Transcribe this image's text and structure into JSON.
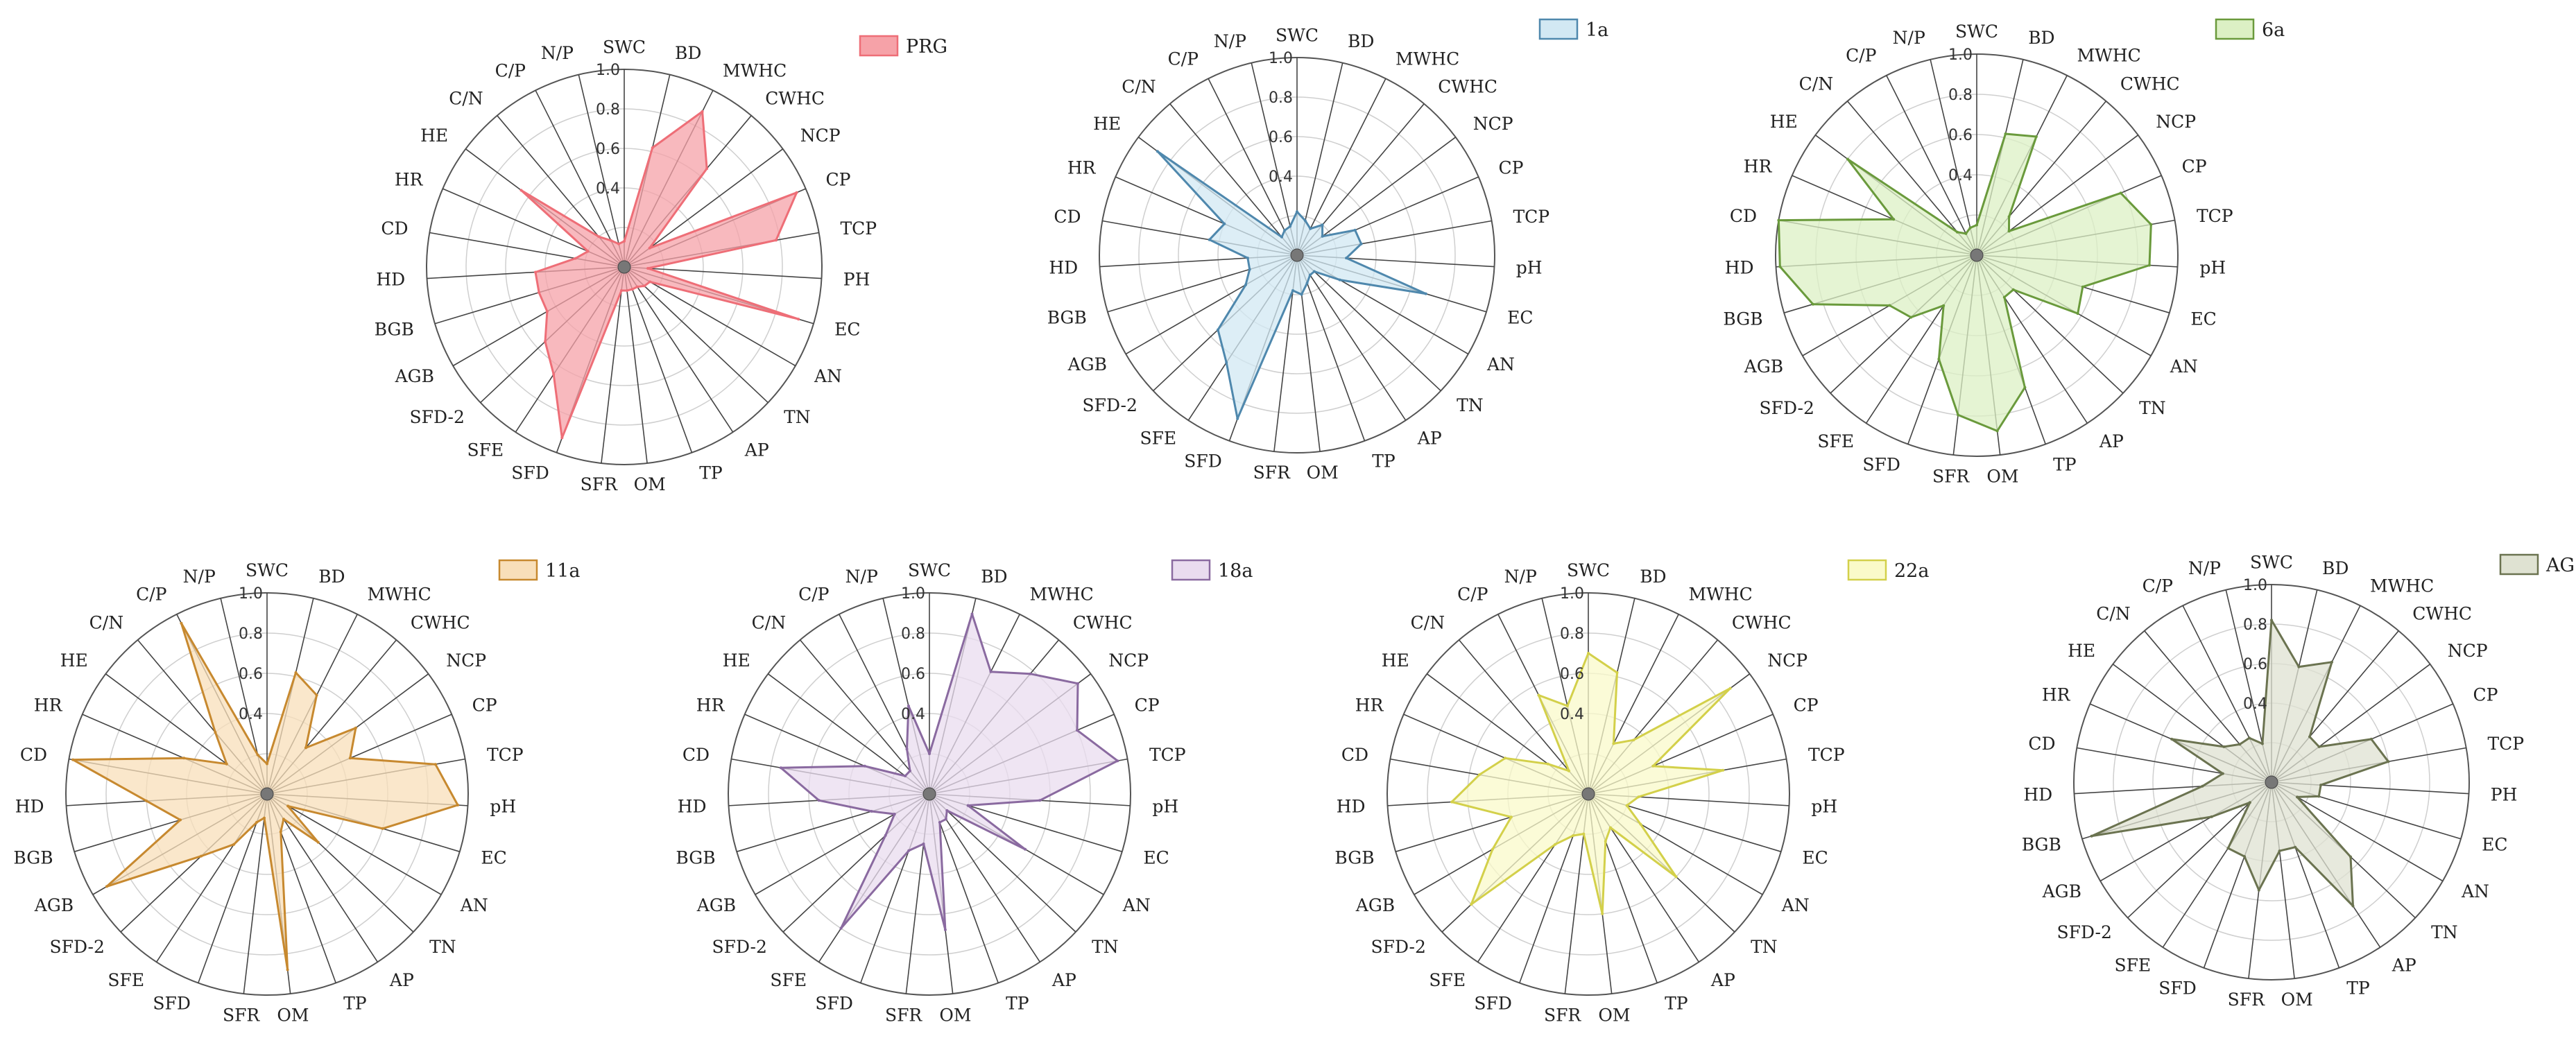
{
  "chart_data": [
    {
      "type": "radar",
      "title": "",
      "series_name": "PRG",
      "color": "#ee6e77",
      "fill": "#f6a2a8",
      "axes": [
        "SWC",
        "BD",
        "MWHC",
        "CWHC",
        "NCP",
        "CP",
        "TCP",
        "PH",
        "EC",
        "AN",
        "TN",
        "AP",
        "TP",
        "OM",
        "SFR",
        "SFD",
        "SFE",
        "SFD-2",
        "AGB",
        "BGB",
        "HD",
        "CD",
        "HR",
        "HE",
        "C/N",
        "C/P",
        "N/P"
      ],
      "ticks": [
        "1.0",
        "0.8",
        "0.6",
        "0.4"
      ],
      "range": [
        0,
        1
      ],
      "values": [
        0.13,
        0.62,
        0.88,
        0.65,
        0.16,
        0.95,
        0.78,
        0.12,
        0.92,
        0.15,
        0.14,
        0.12,
        0.12,
        0.12,
        0.12,
        0.92,
        0.65,
        0.55,
        0.45,
        0.45,
        0.45,
        0.25,
        0.2,
        0.65,
        0.2,
        0.15,
        0.12
      ]
    },
    {
      "type": "radar",
      "title": "",
      "series_name": "1a",
      "color": "#4f88ad",
      "fill": "#d2e8f3",
      "axes": [
        "SWC",
        "BD",
        "MWHC",
        "CWHC",
        "NCP",
        "CP",
        "TCP",
        "pH",
        "EC",
        "AN",
        "TN",
        "AP",
        "TP",
        "OM",
        "SFR",
        "SFD",
        "SFE",
        "SFD-2",
        "AGB",
        "BGB",
        "HD",
        "CD",
        "HR",
        "HE",
        "C/N",
        "C/P",
        "N/P"
      ],
      "ticks": [
        "1.0",
        "0.8",
        "0.6",
        "0.4"
      ],
      "range": [
        0,
        1
      ],
      "values": [
        0.22,
        0.18,
        0.15,
        0.2,
        0.16,
        0.32,
        0.33,
        0.25,
        0.68,
        0.25,
        0.12,
        0.12,
        0.15,
        0.2,
        0.18,
        0.88,
        0.65,
        0.55,
        0.3,
        0.25,
        0.25,
        0.45,
        0.4,
        0.88,
        0.12,
        0.14,
        0.15
      ]
    },
    {
      "type": "radar",
      "title": "",
      "series_name": "6a",
      "color": "#6a9a3c",
      "fill": "#dcf0c4",
      "axes": [
        "SWC",
        "BD",
        "MWHC",
        "CWHC",
        "NCP",
        "CP",
        "TCP",
        "pH",
        "EC",
        "AN",
        "TN",
        "AP",
        "TP",
        "OM",
        "SFR",
        "SFD",
        "SFE",
        "SFD-2",
        "AGB",
        "BGB",
        "HD",
        "CD",
        "HR",
        "HE",
        "C/N",
        "C/P",
        "N/P"
      ],
      "ticks": [
        "1.0",
        "0.8",
        "0.6",
        "0.4"
      ],
      "range": [
        0,
        1
      ],
      "values": [
        0.15,
        0.62,
        0.66,
        0.25,
        0.2,
        0.78,
        0.88,
        0.86,
        0.55,
        0.58,
        0.25,
        0.25,
        0.7,
        0.88,
        0.8,
        0.55,
        0.3,
        0.45,
        0.5,
        0.85,
        0.98,
        1.0,
        0.45,
        0.8,
        0.15,
        0.12,
        0.14
      ]
    },
    {
      "type": "radar",
      "title": "",
      "series_name": "11a",
      "color": "#c7892f",
      "fill": "#f8dfb9",
      "axes": [
        "SWC",
        "BD",
        "MWHC",
        "CWHC",
        "NCP",
        "CP",
        "TCP",
        "pH",
        "EC",
        "AN",
        "TN",
        "AP",
        "TP",
        "OM",
        "SFR",
        "SFD",
        "SFE",
        "SFD-2",
        "AGB",
        "BGB",
        "HD",
        "CD",
        "HR",
        "HE",
        "C/N",
        "C/P",
        "N/P"
      ],
      "ticks": [
        "1.0",
        "0.8",
        "0.6",
        "0.4"
      ],
      "range": [
        0,
        1
      ],
      "values": [
        0.15,
        0.62,
        0.55,
        0.3,
        0.55,
        0.45,
        0.85,
        0.95,
        0.6,
        0.12,
        0.35,
        0.15,
        0.2,
        0.88,
        0.12,
        0.15,
        0.3,
        0.45,
        0.92,
        0.45,
        0.6,
        0.98,
        0.45,
        0.25,
        0.4,
        0.95,
        0.2
      ]
    },
    {
      "type": "radar",
      "title": "",
      "series_name": "18a",
      "color": "#8a6aa0",
      "fill": "#e9dcef",
      "axes": [
        "SWC",
        "BD",
        "MWHC",
        "CWHC",
        "NCP",
        "CP",
        "TCP",
        "pH",
        "EC",
        "AN",
        "TN",
        "AP",
        "TP",
        "OM",
        "SFR",
        "SFD",
        "SFE",
        "SFD-2",
        "AGB",
        "BGB",
        "HD",
        "CD",
        "HR",
        "HE",
        "C/N",
        "C/P",
        "N/P"
      ],
      "ticks": [
        "1.0",
        "0.8",
        "0.6",
        "0.4"
      ],
      "range": [
        0,
        1
      ],
      "values": [
        0.2,
        0.92,
        0.68,
        0.78,
        0.92,
        0.8,
        0.95,
        0.55,
        0.2,
        0.55,
        0.12,
        0.15,
        0.15,
        0.68,
        0.25,
        0.3,
        0.8,
        0.3,
        0.2,
        0.3,
        0.55,
        0.75,
        0.35,
        0.15,
        0.15,
        0.25,
        0.45
      ]
    },
    {
      "type": "radar",
      "title": "",
      "series_name": "22a",
      "color": "#d3d04a",
      "fill": "#fafac9",
      "axes": [
        "SWC",
        "BD",
        "MWHC",
        "CWHC",
        "NCP",
        "CP",
        "TCP",
        "pH",
        "EC",
        "AN",
        "TN",
        "AP",
        "TP",
        "OM",
        "SFR",
        "SFD",
        "SFE",
        "SFD-2",
        "AGB",
        "BGB",
        "HD",
        "CD",
        "HR",
        "HE",
        "C/N",
        "C/P",
        "N/P"
      ],
      "ticks": [
        "1.0",
        "0.8",
        "0.6",
        "0.4"
      ],
      "range": [
        0,
        1
      ],
      "values": [
        0.7,
        0.62,
        0.28,
        0.35,
        0.88,
        0.35,
        0.68,
        0.25,
        0.2,
        0.3,
        0.6,
        0.2,
        0.25,
        0.6,
        0.2,
        0.22,
        0.3,
        0.8,
        0.55,
        0.4,
        0.68,
        0.55,
        0.45,
        0.25,
        0.15,
        0.55,
        0.45
      ]
    },
    {
      "type": "radar",
      "title": "",
      "series_name": "AG",
      "color": "#6b7350",
      "fill": "#dfe2d2",
      "axes": [
        "SWC",
        "BD",
        "MWHC",
        "CWHC",
        "NCP",
        "CP",
        "TCP",
        "PH",
        "EC",
        "AN",
        "TN",
        "AP",
        "TP",
        "OM",
        "SFR",
        "SFD",
        "SFE",
        "SFD-2",
        "AGB",
        "BGB",
        "HD",
        "CD",
        "HR",
        "HE",
        "C/N",
        "C/P",
        "N/P"
      ],
      "ticks": [
        "1.0",
        "0.8",
        "0.6",
        "0.4"
      ],
      "range": [
        0,
        1
      ],
      "values": [
        0.82,
        0.6,
        0.68,
        0.3,
        0.3,
        0.55,
        0.6,
        0.25,
        0.25,
        0.15,
        0.55,
        0.75,
        0.35,
        0.35,
        0.55,
        0.4,
        0.4,
        0.15,
        0.35,
        0.95,
        0.35,
        0.25,
        0.55,
        0.3,
        0.25,
        0.25,
        0.2
      ]
    }
  ]
}
